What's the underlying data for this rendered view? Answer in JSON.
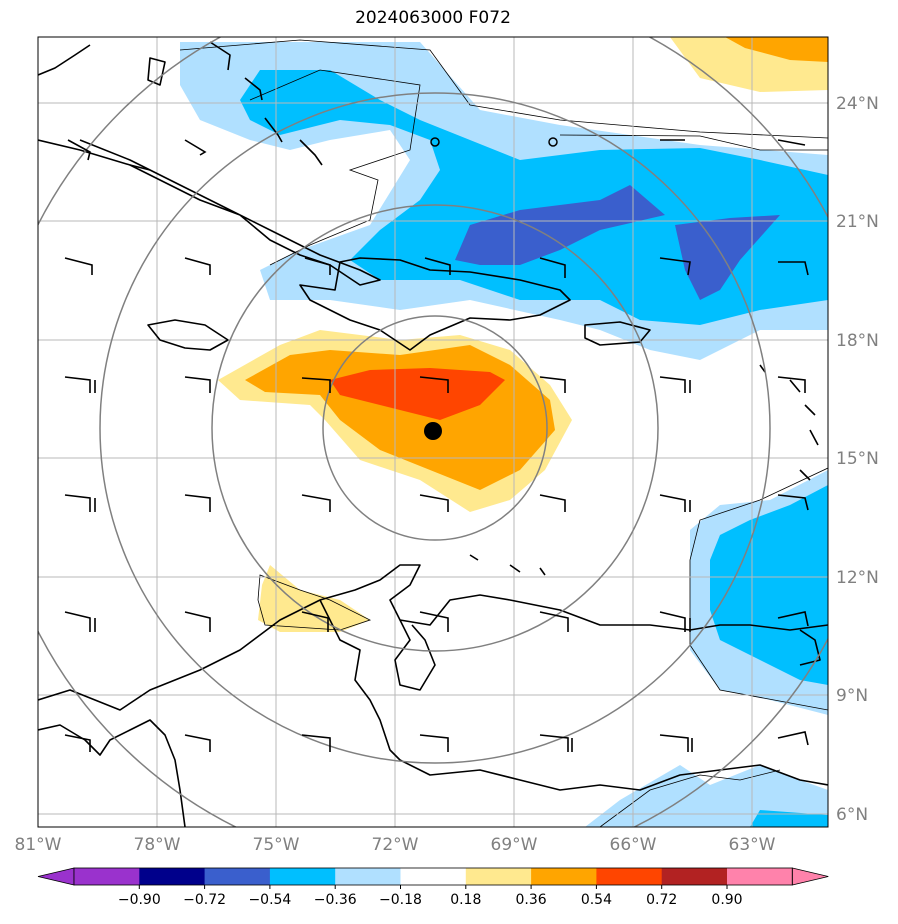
{
  "title": "2024063000 F072",
  "map": {
    "lon_ticks": [
      "81°W",
      "78°W",
      "75°W",
      "72°W",
      "69°W",
      "66°W",
      "63°W"
    ],
    "lat_ticks": [
      "24°N",
      "21°N",
      "18°N",
      "15°N",
      "12°N",
      "9°N",
      "6°N"
    ],
    "storm_center_marker": "black-dot"
  },
  "colorbar": {
    "ticks": [
      "−0.90",
      "−0.72",
      "−0.54",
      "−0.36",
      "−0.18",
      "0.18",
      "0.36",
      "0.54",
      "0.72",
      "0.90"
    ],
    "colors": [
      "#9a32cd",
      "#00008b",
      "#3a5fcd",
      "#00bfff",
      "#b0e0ff",
      "#ffffff",
      "#ffe98f",
      "#ffa500",
      "#ff4500",
      "#b22222",
      "#ff82ab",
      "#ff82ab"
    ]
  }
}
